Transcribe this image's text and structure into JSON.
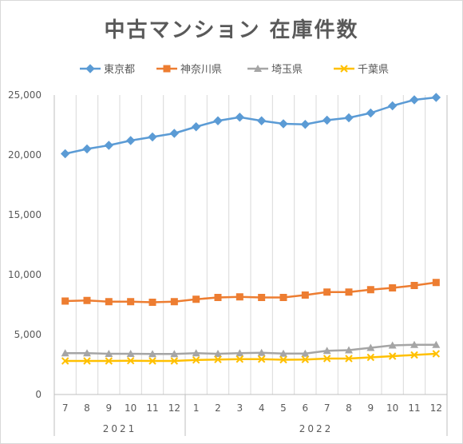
{
  "chart_data": {
    "type": "line",
    "title": "中古マンション 在庫件数",
    "legend_position": "top",
    "grid": "vertical",
    "ylim": [
      0,
      25000
    ],
    "yticks": [
      "25,000",
      "20,000",
      "15,000",
      "10,000",
      "5,000",
      "0"
    ],
    "categories": [
      "7",
      "8",
      "9",
      "10",
      "11",
      "12",
      "1",
      "2",
      "3",
      "4",
      "5",
      "6",
      "7",
      "8",
      "9",
      "10",
      "11",
      "12"
    ],
    "year_groups": [
      {
        "label": "2021",
        "span": 6
      },
      {
        "label": "2022",
        "span": 12
      }
    ],
    "series": [
      {
        "name": "東京都",
        "color": "#5b9bd5",
        "marker": "diamond",
        "values": [
          20100,
          20500,
          20800,
          21200,
          21500,
          21800,
          22350,
          22850,
          23150,
          22850,
          22600,
          22550,
          22900,
          23100,
          23500,
          24100,
          24600,
          24800
        ]
      },
      {
        "name": "神奈川県",
        "color": "#ed7d31",
        "marker": "square",
        "values": [
          7800,
          7850,
          7750,
          7750,
          7700,
          7750,
          7950,
          8100,
          8150,
          8100,
          8100,
          8300,
          8550,
          8550,
          8750,
          8900,
          9100,
          9350
        ]
      },
      {
        "name": "埼玉県",
        "color": "#a5a5a5",
        "marker": "triangle",
        "values": [
          3450,
          3450,
          3400,
          3400,
          3380,
          3380,
          3450,
          3400,
          3450,
          3480,
          3420,
          3420,
          3650,
          3700,
          3900,
          4100,
          4150,
          4150
        ]
      },
      {
        "name": "千葉県",
        "color": "#ffc000",
        "marker": "x",
        "values": [
          2800,
          2800,
          2800,
          2820,
          2800,
          2800,
          2880,
          2920,
          2950,
          2950,
          2900,
          2920,
          3000,
          3000,
          3100,
          3200,
          3300,
          3400
        ]
      }
    ]
  }
}
